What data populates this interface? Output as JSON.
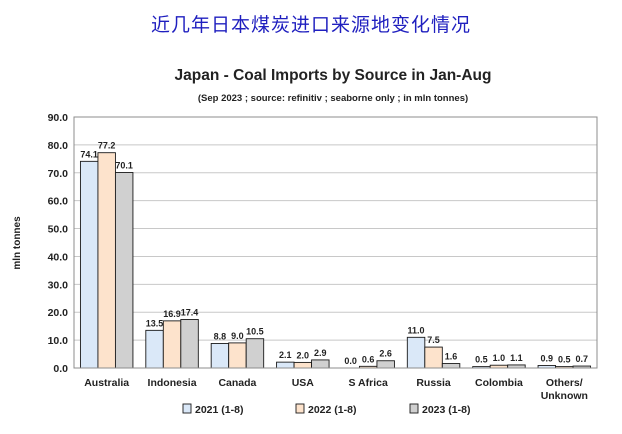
{
  "header_text": "近几年日本煤炭进口来源地变化情况",
  "chart_data": {
    "type": "bar",
    "title": "Japan - Coal Imports by Source in Jan-Aug",
    "subtitle": "(Sep 2023 ; source: refinitiv ; seaborne only ; in mln tonnes)",
    "xlabel": "",
    "ylabel": "mln tonnes",
    "ylim": [
      0,
      90
    ],
    "yticks": [
      "0.0",
      "10.0",
      "20.0",
      "30.0",
      "40.0",
      "50.0",
      "60.0",
      "70.0",
      "80.0",
      "90.0"
    ],
    "grid": true,
    "legend_position": "bottom",
    "categories": [
      "Australia",
      "Indonesia",
      "Canada",
      "USA",
      "S Africa",
      "Russia",
      "Colombia",
      "Others/\nUnknown"
    ],
    "series": [
      {
        "name": "2021 (1-8)",
        "color": "#dae8f8",
        "values": [
          74.1,
          13.5,
          8.8,
          2.1,
          0.0,
          11.0,
          0.5,
          0.9
        ],
        "labels": [
          "74.1",
          "13.5",
          "8.8",
          "2.1",
          "0.0",
          "11.0",
          "0.5",
          "0.9"
        ]
      },
      {
        "name": "2022 (1-8)",
        "color": "#fde3cc",
        "values": [
          77.2,
          16.9,
          9.0,
          2.0,
          0.6,
          7.5,
          1.0,
          0.5
        ],
        "labels": [
          "77.2",
          "16.9",
          "9.0",
          "2.0",
          "0.6",
          "7.5",
          "1.0",
          "0.5"
        ]
      },
      {
        "name": "2023 (1-8)",
        "color": "#d0d0d0",
        "values": [
          70.1,
          17.4,
          10.5,
          2.9,
          2.6,
          1.6,
          1.1,
          0.7
        ],
        "labels": [
          "70.1",
          "17.4",
          "10.5",
          "2.9",
          "2.6",
          "1.6",
          "1.1",
          "0.7"
        ]
      }
    ]
  }
}
